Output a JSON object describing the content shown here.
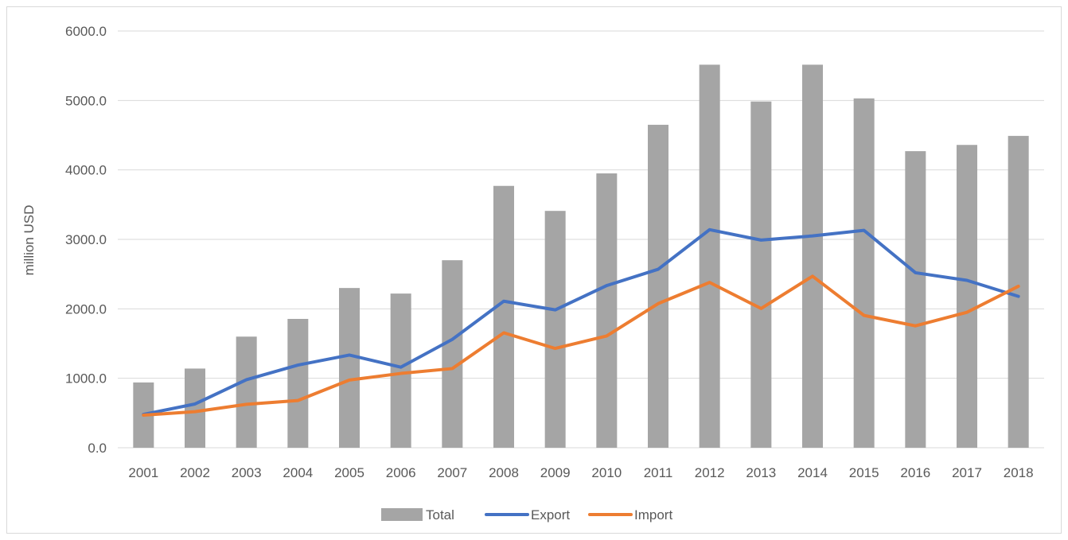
{
  "chart_data": {
    "type": "bar",
    "title": "",
    "xlabel": "",
    "ylabel": "million USD",
    "ylim": [
      0,
      6000
    ],
    "yticks": [
      "0.0",
      "1000.0",
      "2000.0",
      "3000.0",
      "4000.0",
      "5000.0",
      "6000.0"
    ],
    "grid": true,
    "legend_position": "bottom",
    "categories": [
      "2001",
      "2002",
      "2003",
      "2004",
      "2005",
      "2006",
      "2007",
      "2008",
      "2009",
      "2010",
      "2011",
      "2012",
      "2013",
      "2014",
      "2015",
      "2016",
      "2017",
      "2018"
    ],
    "series": [
      {
        "name": "Total",
        "type": "bar",
        "color": "#a5a5a5",
        "values": [
          940,
          1140,
          1600,
          1855,
          2300,
          2220,
          2700,
          3770,
          3410,
          3950,
          4650,
          5515,
          4985,
          5515,
          5030,
          4270,
          4360,
          4490
        ]
      },
      {
        "name": "Export",
        "type": "line",
        "color": "#4472c4",
        "values": [
          480,
          630,
          980,
          1190,
          1335,
          1160,
          1560,
          2110,
          1985,
          2335,
          2570,
          3140,
          2990,
          3050,
          3130,
          2520,
          2410,
          2180
        ]
      },
      {
        "name": "Import",
        "type": "line",
        "color": "#ed7d31",
        "values": [
          470,
          520,
          625,
          680,
          975,
          1070,
          1140,
          1655,
          1430,
          1610,
          2075,
          2380,
          2005,
          2470,
          1905,
          1755,
          1950,
          2325
        ]
      }
    ]
  }
}
